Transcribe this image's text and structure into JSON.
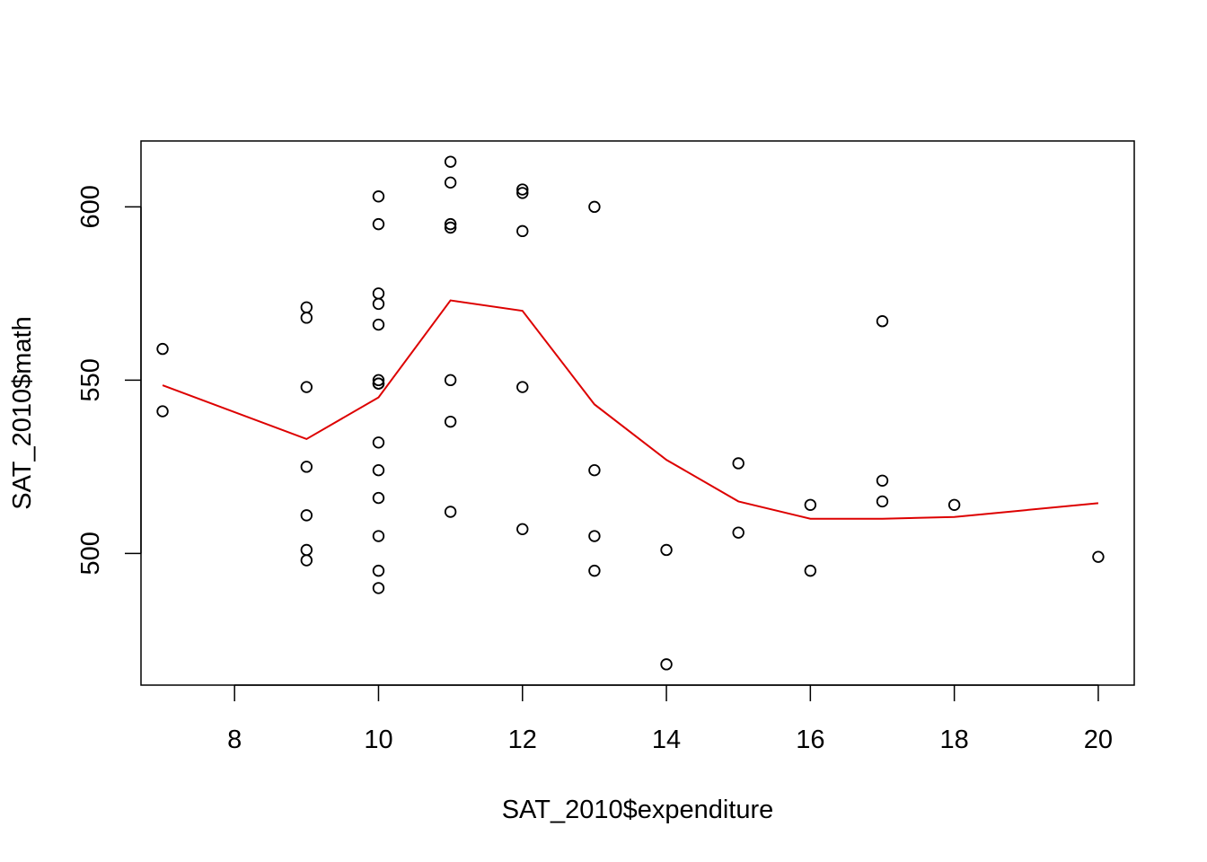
{
  "chart_data": {
    "type": "scatter",
    "xlabel": "SAT_2010$expenditure",
    "ylabel": "SAT_2010$math",
    "xlim": [
      6.7,
      20.5
    ],
    "ylim": [
      462,
      619
    ],
    "xticks": [
      8,
      10,
      12,
      14,
      16,
      18,
      20
    ],
    "yticks": [
      500,
      550,
      600
    ],
    "grid": false,
    "colors": {
      "points": "#000000",
      "smooth_line": "#dd0000",
      "frame": "#000000"
    },
    "series": [
      {
        "type": "scatter",
        "x": [
          7,
          7,
          9,
          9,
          9,
          9,
          9,
          9,
          9,
          10,
          10,
          10,
          10,
          10,
          10,
          10,
          10,
          10,
          10,
          10,
          10,
          10,
          10,
          11,
          11,
          11,
          11,
          11,
          11,
          11,
          12,
          12,
          12,
          12,
          12,
          13,
          13,
          13,
          13,
          14,
          14,
          15,
          15,
          16,
          16,
          17,
          17,
          17,
          18,
          20
        ],
        "y": [
          559,
          541,
          571,
          568,
          548,
          525,
          511,
          501,
          498,
          603,
          595,
          575,
          572,
          566,
          550,
          549,
          532,
          524,
          516,
          505,
          495,
          490,
          549,
          613,
          607,
          595,
          594,
          550,
          538,
          512,
          605,
          604,
          593,
          548,
          507,
          600,
          524,
          505,
          495,
          501,
          468,
          526,
          506,
          514,
          495,
          567,
          521,
          515,
          514,
          499
        ]
      },
      {
        "type": "line",
        "x": [
          7,
          9,
          10,
          11,
          12,
          13,
          14,
          15,
          16,
          17,
          18,
          20
        ],
        "y": [
          548.5,
          533,
          545,
          573,
          570,
          543,
          527,
          515,
          510,
          510,
          510.5,
          514.5
        ]
      }
    ]
  }
}
